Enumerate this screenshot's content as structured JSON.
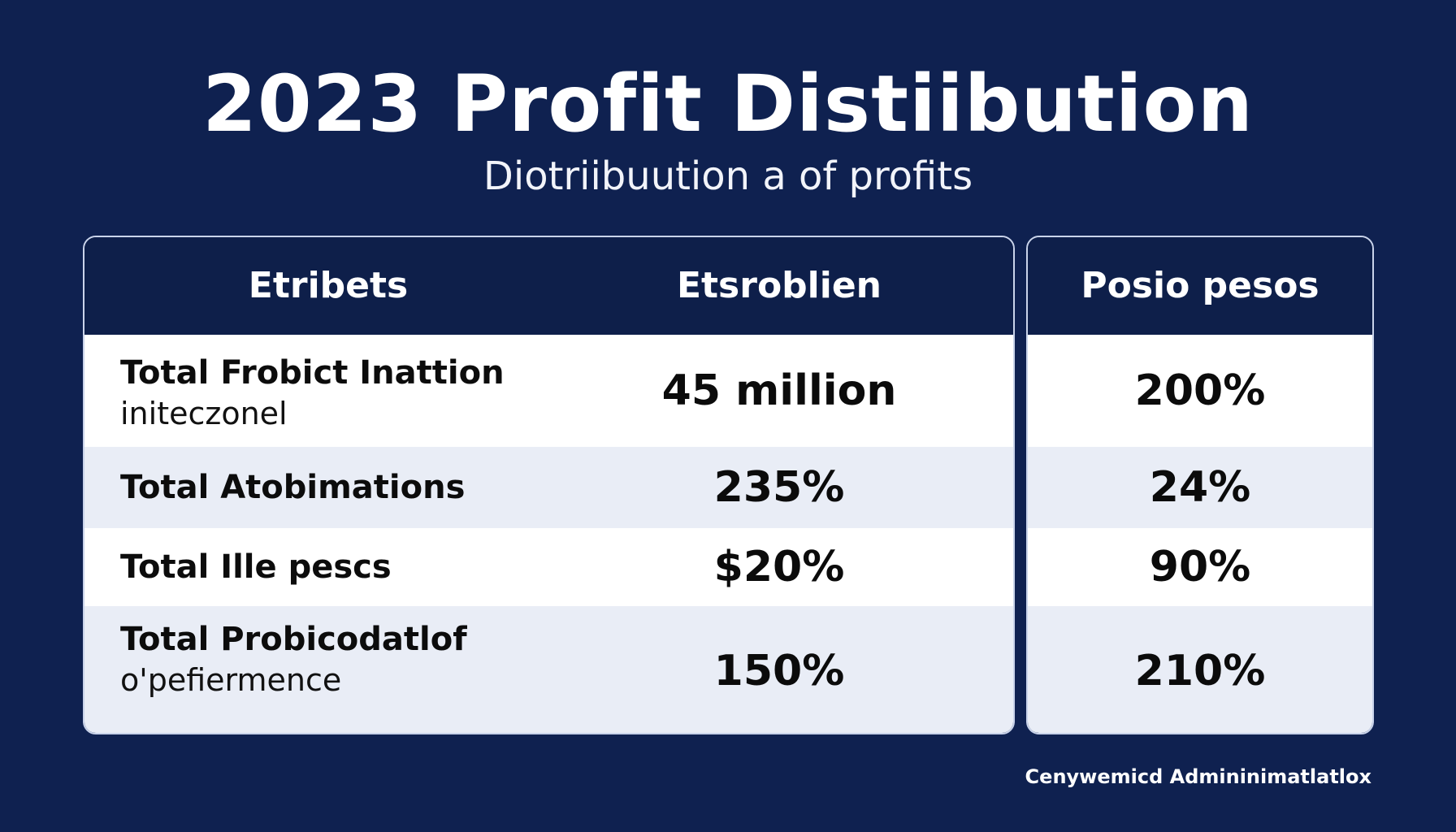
{
  "chart_data": {
    "type": "table",
    "title": "2023 Profit Distiibution",
    "subtitle": "Diotriibuution a of profits",
    "columns": [
      "Etribets",
      "Etsroblien",
      "Posio pesos"
    ],
    "rows": [
      {
        "label": "Total Frobict Inattion",
        "sublabel": "initeczonel",
        "value": "45 million",
        "pesos": "200%"
      },
      {
        "label": "Total Atobimations",
        "sublabel": "",
        "value": "235%",
        "pesos": "24%"
      },
      {
        "label": "Total Ille pescs",
        "sublabel": "",
        "value": "$20%",
        "pesos": "90%"
      },
      {
        "label": "Total Probicodatlof",
        "sublabel": "o'pefiermence",
        "value": "150%",
        "pesos": "210%"
      }
    ]
  },
  "footer": "Cenywemicd Admininimatlatlox",
  "colors": {
    "background": "#0f2150",
    "header": "#0e1f4a",
    "row_light": "#ffffff",
    "row_alt": "#e9edf6",
    "border": "#c9d3ea"
  }
}
